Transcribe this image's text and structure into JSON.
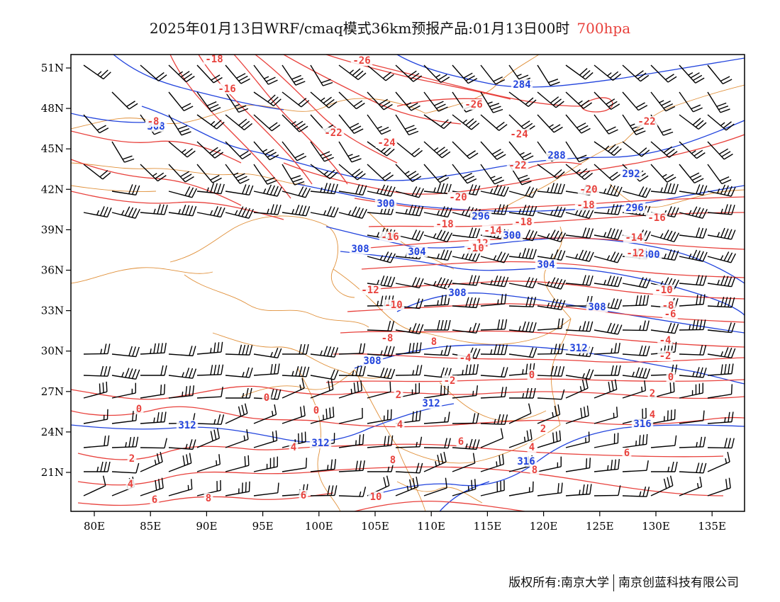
{
  "title": {
    "main": "2025年01月13日WRF/cmaq模式36km预报产品:01月13日00时",
    "level": "700hpa",
    "level_color": "#e8413c"
  },
  "footer": {
    "copyright": "版权所有:南京大学",
    "company": "南京创蓝科技有限公司"
  },
  "map": {
    "longitude_ticks": [
      "80E",
      "85E",
      "90E",
      "95E",
      "100E",
      "105E",
      "110E",
      "115E",
      "120E",
      "125E",
      "130E",
      "135E"
    ],
    "latitude_ticks": [
      "51N",
      "48N",
      "45N",
      "42N",
      "39N",
      "36N",
      "33N",
      "30N",
      "27N",
      "24N",
      "21N"
    ],
    "colors": {
      "temperature_contour": "#e8413c",
      "height_contour": "#2244dd",
      "boundary": "#e0903a",
      "wind_barb": "#000000"
    },
    "height_labels": [
      "284",
      "288",
      "292",
      "296",
      "300",
      "304",
      "308",
      "312",
      "316"
    ],
    "temperature_labels": [
      "-26",
      "-24",
      "-22",
      "-20",
      "-18",
      "-16",
      "-14",
      "-12",
      "-10",
      "-8",
      "-6",
      "-4",
      "-2",
      "0",
      "2",
      "4",
      "6",
      "8",
      "10"
    ]
  }
}
